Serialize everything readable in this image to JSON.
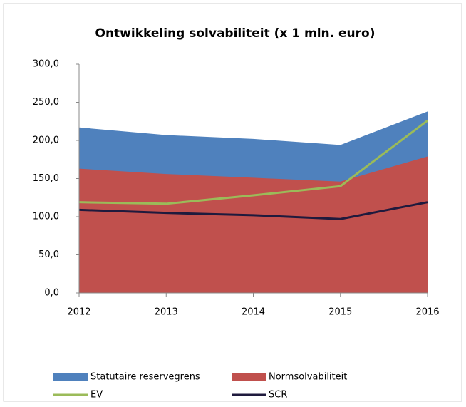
{
  "chart_data": {
    "type": "area",
    "title": "Ontwikkeling solvabiliteit (x 1 mln. euro)",
    "categories": [
      "2012",
      "2013",
      "2014",
      "2015",
      "2016"
    ],
    "ylim": [
      0,
      300
    ],
    "yticks": [
      {
        "value": 0,
        "label": "0,0"
      },
      {
        "value": 50,
        "label": "50,0"
      },
      {
        "value": 100,
        "label": "100,0"
      },
      {
        "value": 150,
        "label": "150,0"
      },
      {
        "value": 200,
        "label": "200,0"
      },
      {
        "value": 250,
        "label": "250,0"
      },
      {
        "value": 300,
        "label": "300,0"
      }
    ],
    "series": [
      {
        "name": "Statutaire reservegrens",
        "type": "area",
        "color": "#4f81bd",
        "values": [
          217,
          207,
          202,
          194,
          238
        ]
      },
      {
        "name": "Normsolvabiliteit",
        "type": "area",
        "color": "#c0504d",
        "values": [
          163,
          156,
          151,
          146,
          179
        ]
      },
      {
        "name": "EV",
        "type": "line",
        "color": "#9bbb59",
        "values": [
          119,
          117,
          128,
          140,
          226
        ]
      },
      {
        "name": "SCR",
        "type": "line",
        "color": "#1f1a3d",
        "values": [
          109,
          105,
          102,
          97,
          119
        ]
      }
    ]
  }
}
